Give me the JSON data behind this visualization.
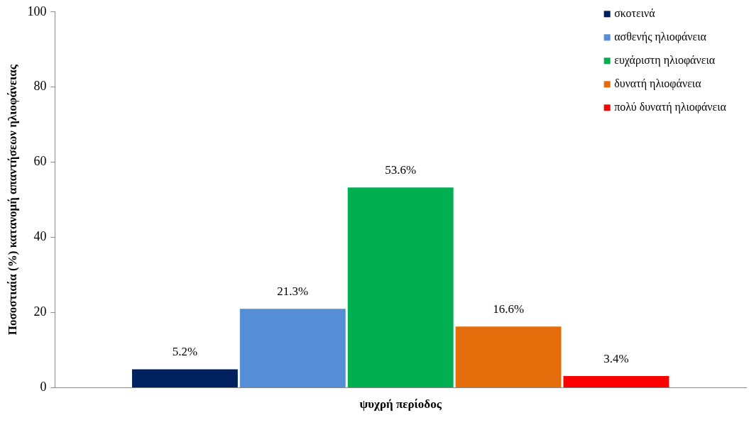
{
  "chart_data": {
    "type": "bar",
    "categories": [
      "ψυχρή περίοδος"
    ],
    "ylabel": "Ποσοστιαία (%) κατανομή απαντήσεων ηλιοφάνειας",
    "ylim": [
      0,
      100
    ],
    "yticks": [
      0,
      20,
      40,
      60,
      80,
      100
    ],
    "grid": false,
    "legend": "top right",
    "series": [
      {
        "name": "σκοτεινά",
        "color": "#002060",
        "values": [
          5.2
        ],
        "value_labels": [
          "5.2%"
        ]
      },
      {
        "name": "ασθενής ηλιοφάνεια",
        "color": "#558ed5",
        "values": [
          21.3
        ],
        "value_labels": [
          "21.3%"
        ]
      },
      {
        "name": "ευχάριστη ηλιοφάνεια",
        "color": "#00b050",
        "values": [
          53.6
        ],
        "value_labels": [
          "53.6%"
        ]
      },
      {
        "name": "δυνατή ηλιοφάνεια",
        "color": "#e46c0a",
        "values": [
          16.6
        ],
        "value_labels": [
          "16.6%"
        ]
      },
      {
        "name": "πολύ δυνατή ηλιοφάνεια",
        "color": "#ff0000",
        "values": [
          3.4
        ],
        "value_labels": [
          "3.4%"
        ]
      }
    ]
  }
}
